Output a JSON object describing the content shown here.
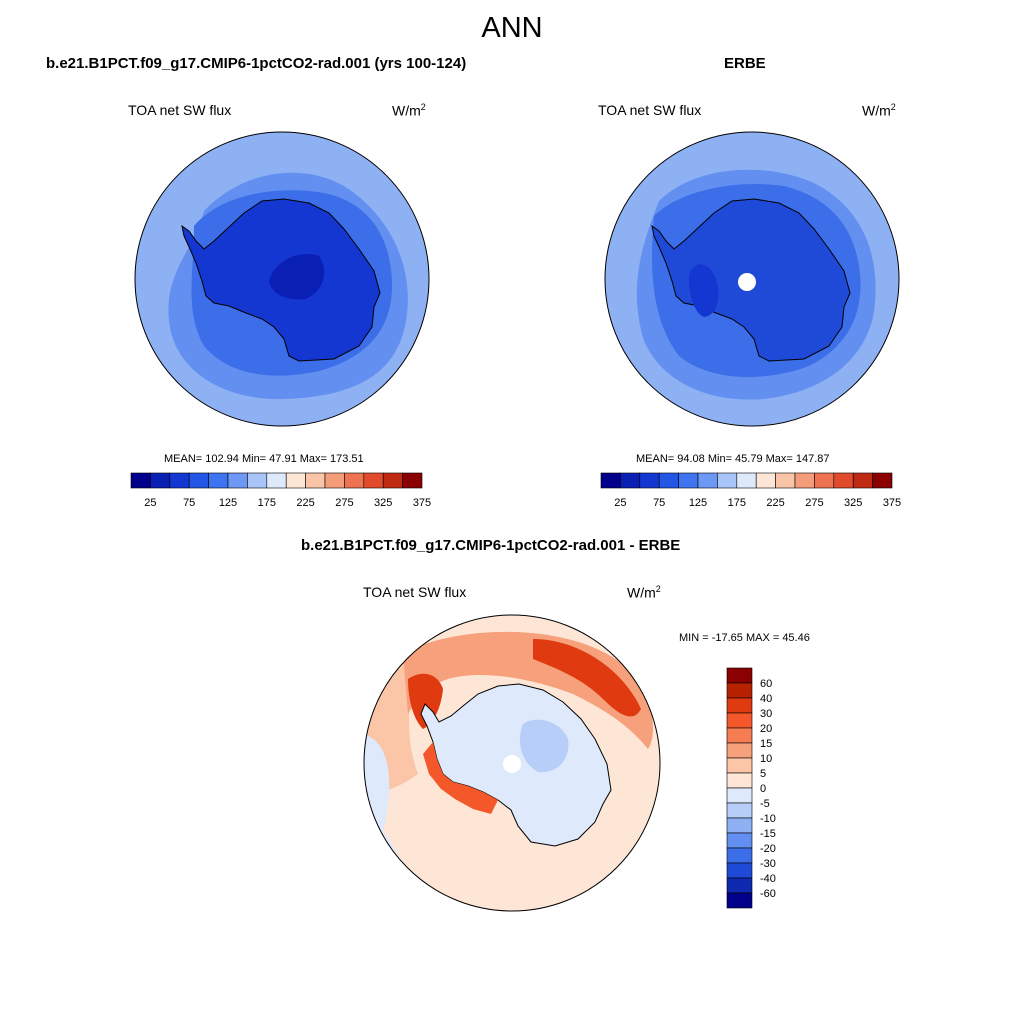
{
  "title": "ANN",
  "panels": [
    {
      "title": "b.e21.B1PCT.f09_g17.CMIP6-1pctCO2-rad.001 (yrs 100-124)",
      "variable": "TOA net SW flux",
      "units": "W/m",
      "units_sup": "2",
      "stats": "MEAN= 102.94  Min=  47.91  Max= 173.51",
      "colorbar_ticks": [
        "25",
        "75",
        "125",
        "175",
        "225",
        "275",
        "325",
        "375"
      ],
      "has_pole_hole": false
    },
    {
      "title": "ERBE",
      "variable": "TOA net SW flux",
      "units": "W/m",
      "units_sup": "2",
      "stats": "MEAN=  94.08  Min=  45.79  Max= 147.87",
      "colorbar_ticks": [
        "25",
        "75",
        "125",
        "175",
        "225",
        "275",
        "325",
        "375"
      ],
      "has_pole_hole": true
    },
    {
      "title": "b.e21.B1PCT.f09_g17.CMIP6-1pctCO2-rad.001 - ERBE",
      "variable": "TOA net SW flux",
      "units": "W/m",
      "units_sup": "2",
      "stats": "MIN = -17.65 MAX =  45.46",
      "colorbar_ticks": [
        "60",
        "40",
        "30",
        "20",
        "15",
        "10",
        "5",
        "0",
        "-5",
        "-10",
        "-15",
        "-20",
        "-30",
        "-40",
        "-60"
      ],
      "has_pole_hole": true
    }
  ],
  "colors": {
    "abs_scale": [
      "#00008b",
      "#0a1fb4",
      "#1437d2",
      "#2456e6",
      "#3f74f0",
      "#6d98f4",
      "#a8c4f8",
      "#dfe9fc",
      "#fde6d6",
      "#f9c4a8",
      "#f59d7b",
      "#ee7350",
      "#e24a2c",
      "#c12a12",
      "#8b0000"
    ],
    "diff_scale": [
      "#8b0000",
      "#b82200",
      "#df3a10",
      "#f4582a",
      "#f67c52",
      "#f7a07c",
      "#fbc5a7",
      "#fde6d6",
      "#dfe9fc",
      "#b7cff8",
      "#8eb1f4",
      "#6390f0",
      "#3c6ee9",
      "#1f4ad8",
      "#0e28b0",
      "#00008b"
    ],
    "land_outline": "#000000"
  }
}
